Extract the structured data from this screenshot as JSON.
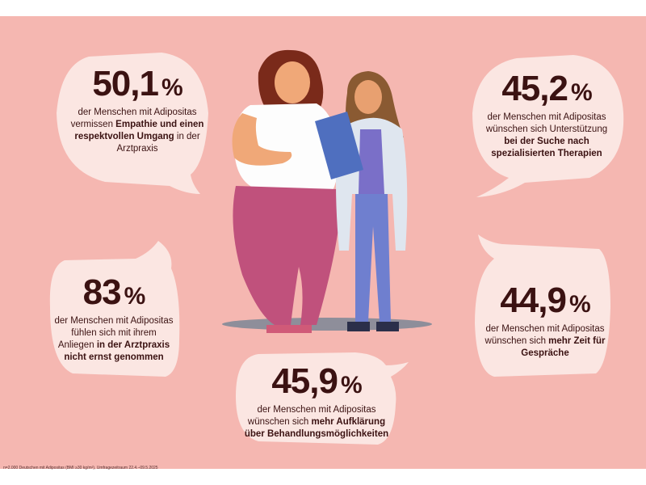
{
  "colors": {
    "background": "#f5b7b1",
    "bubble": "#fbe6e2",
    "text": "#3b1212"
  },
  "stats": {
    "s1": {
      "value": "50,1",
      "unit": "%",
      "pre": "der Menschen mit Adipositas vermissen ",
      "bold": "Empathie und einen respektvollen Umgang",
      "post": " in der Arztpraxis"
    },
    "s2": {
      "value": "45,2",
      "unit": "%",
      "pre": "der Menschen mit Adipositas wünschen sich Unterstützung ",
      "bold": "bei der Suche nach spezialisierten Therapien",
      "post": ""
    },
    "s3": {
      "value": "83",
      "unit": "%",
      "pre": "der Menschen mit Adipositas fühlen sich mit ihrem Anliegen ",
      "bold": "in der Arztpraxis nicht ernst genommen",
      "post": ""
    },
    "s4": {
      "value": "44,9",
      "unit": "%",
      "pre": "der Menschen mit Adipositas wünschen sich ",
      "bold": "mehr Zeit für Gespräche",
      "post": ""
    },
    "s5": {
      "value": "45,9",
      "unit": "%",
      "pre": "der Menschen mit Adipositas wünschen sich ",
      "bold": "mehr Aufklärung über Behandlungsmöglichkeiten",
      "post": ""
    }
  },
  "footnote": "n=2.000 Deutschen mit Adipositas (BMI ≥30 kg/m²), Umfragezeitraum 22.4.–09.5.2025",
  "illustration": {
    "left_figure": "patient-figure",
    "right_figure": "doctor-figure"
  }
}
